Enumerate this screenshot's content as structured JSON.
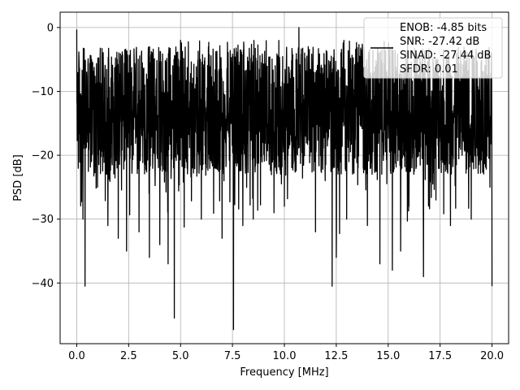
{
  "chart_data": {
    "type": "line",
    "title": "",
    "xlabel": "Frequency [MHz]",
    "ylabel": "PSD [dB]",
    "xlim": [
      -0.8,
      20.8
    ],
    "ylim": [
      -49.5,
      2.4
    ],
    "x_ticks": [
      0.0,
      2.5,
      5.0,
      7.5,
      10.0,
      12.5,
      15.0,
      17.5,
      20.0
    ],
    "x_tick_labels": [
      "0.0",
      "2.5",
      "5.0",
      "7.5",
      "10.0",
      "12.5",
      "15.0",
      "17.5",
      "20.0"
    ],
    "y_ticks": [
      0,
      -10,
      -20,
      -30,
      -40
    ],
    "y_tick_labels": [
      "0",
      "−10",
      "−20",
      "−30",
      "−40"
    ],
    "grid": true,
    "legend": {
      "position": "top-right",
      "entries": [
        "ENOB: -4.85 bits",
        "SNR: -27.42 dB",
        "SINAD: -27.44 dB",
        "SFDR: 0.01"
      ]
    },
    "series": [
      {
        "color": "#000000",
        "description": "dense noise-like PSD spanning 0-20 MHz, mostly between -25 and -3 dB",
        "x_range": [
          0.0,
          20.0
        ],
        "points": [
          [
            0.0,
            -0.3
          ],
          [
            0.15,
            -12
          ],
          [
            0.3,
            -30
          ],
          [
            0.4,
            -40.5
          ],
          [
            1.0,
            -25
          ],
          [
            1.5,
            -31
          ],
          [
            2.0,
            -33
          ],
          [
            2.4,
            -35
          ],
          [
            3.0,
            -32
          ],
          [
            3.5,
            -36
          ],
          [
            4.0,
            -34
          ],
          [
            4.4,
            -37
          ],
          [
            4.7,
            -45.5
          ],
          [
            5.0,
            -2
          ],
          [
            6.0,
            -30
          ],
          [
            7.0,
            -33
          ],
          [
            7.55,
            -47.3
          ],
          [
            8.0,
            -31
          ],
          [
            8.5,
            -30
          ],
          [
            9.5,
            -29
          ],
          [
            10.0,
            -28
          ],
          [
            10.7,
            0
          ],
          [
            11.5,
            -32
          ],
          [
            12.3,
            -40.5
          ],
          [
            12.5,
            -36
          ],
          [
            13.0,
            -30
          ],
          [
            14.0,
            -31
          ],
          [
            14.6,
            -37
          ],
          [
            15.2,
            -38
          ],
          [
            15.6,
            -35
          ],
          [
            16.0,
            -28
          ],
          [
            16.7,
            -39
          ],
          [
            17.3,
            -27
          ],
          [
            18.0,
            -31
          ],
          [
            19.0,
            -30
          ],
          [
            19.9,
            -25
          ],
          [
            20.0,
            -40.5
          ]
        ]
      }
    ]
  }
}
